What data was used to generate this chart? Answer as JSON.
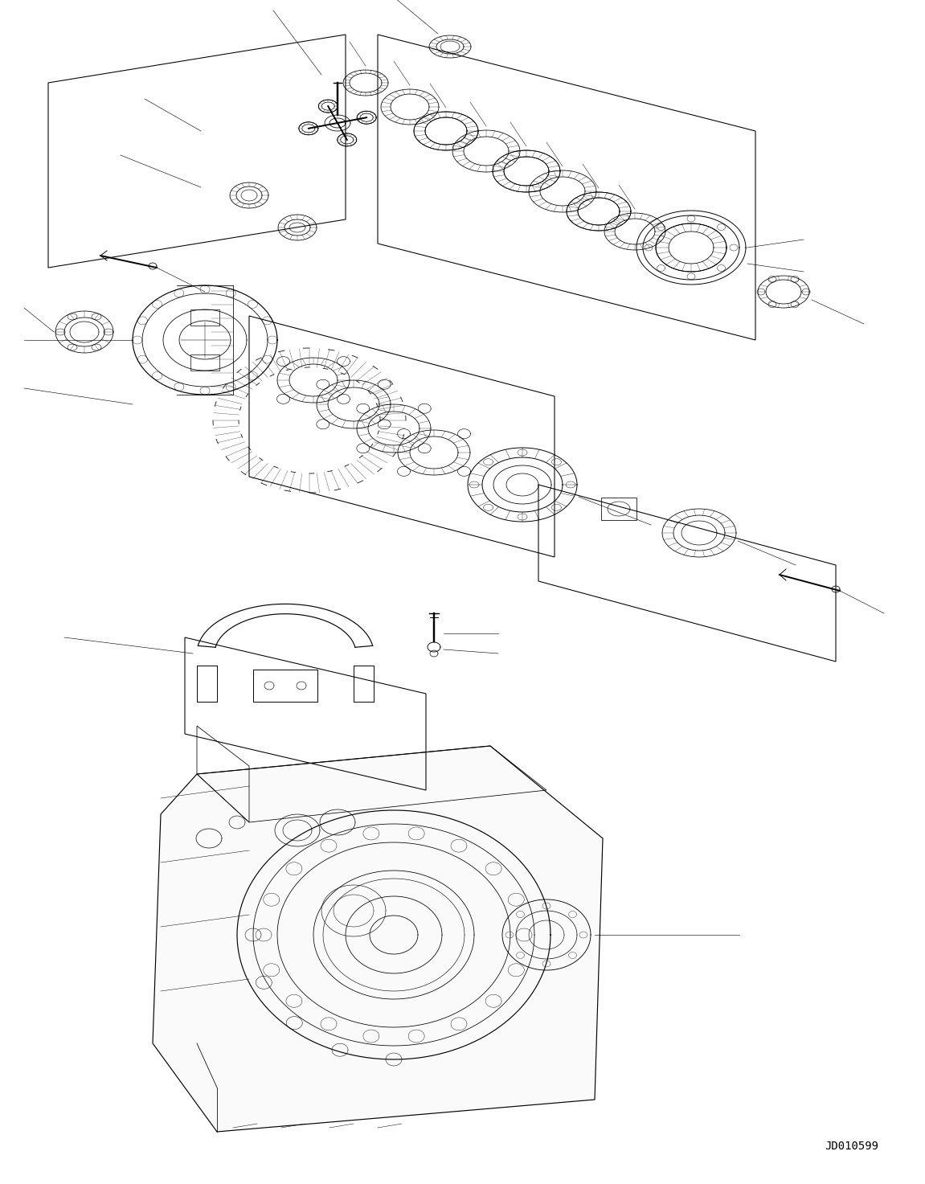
{
  "figure_width": 11.51,
  "figure_height": 14.73,
  "dpi": 100,
  "background_color": "#ffffff",
  "ref_number": "JD010599",
  "ref_fontsize": 10,
  "ref_fontfamily": "monospace",
  "line_color": "#000000",
  "line_width": 0.7
}
